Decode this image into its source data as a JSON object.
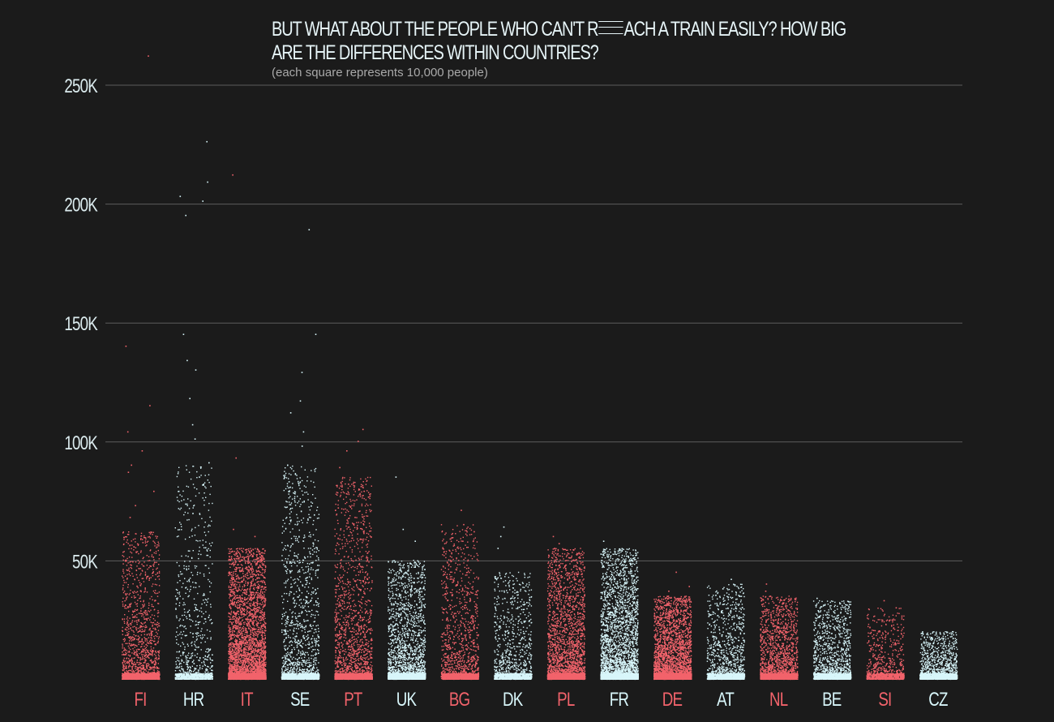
{
  "chart_data": {
    "type": "scatter",
    "title_part1": "BUT WHAT ABOUT THE PEOPLE WHO CAN'T R",
    "title_part2": "ACH A TRAIN EASILY? HOW BIG",
    "title_line2": "ARE THE DIFFERENCES WITHIN COUNTRIES?",
    "subtitle": "(each square represents 10,000 people)",
    "xlabel": "",
    "ylabel": "",
    "ylim": [
      0,
      250000
    ],
    "y_ticks": [
      50000,
      100000,
      150000,
      200000,
      250000
    ],
    "y_tick_labels": [
      "50K",
      "100K",
      "150K",
      "200K",
      "250K"
    ],
    "grid": true,
    "colors": {
      "red": "#f2636b",
      "light": "#d8f6fa",
      "grid": "#5c5c5c",
      "background": "#1b1b1b"
    },
    "categories": [
      "FI",
      "HR",
      "IT",
      "SE",
      "PT",
      "UK",
      "BG",
      "DK",
      "PL",
      "FR",
      "DE",
      "AT",
      "NL",
      "BE",
      "SI",
      "CZ"
    ],
    "category_colors": [
      "red",
      "light",
      "red",
      "light",
      "red",
      "light",
      "red",
      "light",
      "red",
      "light",
      "red",
      "light",
      "red",
      "light",
      "red",
      "light"
    ],
    "density": [
      1400,
      700,
      3600,
      1200,
      1600,
      1800,
      1100,
      800,
      2300,
      2800,
      2700,
      1000,
      1500,
      1100,
      600,
      1000
    ],
    "typical_max": [
      62000,
      90000,
      55000,
      90000,
      85000,
      50000,
      65000,
      45000,
      55000,
      55000,
      35000,
      40000,
      35000,
      33000,
      30000,
      20000
    ],
    "outliers": [
      [
        262000,
        140000,
        115000,
        104000,
        96000,
        90000,
        87000,
        79000,
        73000,
        68000
      ],
      [
        226000,
        209000,
        203000,
        201000,
        195000,
        145000,
        134000,
        130000,
        118000,
        107000,
        101000,
        91000,
        85000,
        82000,
        79000
      ],
      [
        212000,
        93000,
        63000,
        60000
      ],
      [
        189000,
        145000,
        129000,
        117000,
        112000,
        104000,
        98000,
        90000,
        83000,
        76000
      ],
      [
        105000,
        100000,
        96000,
        89000,
        82000,
        77000,
        72000
      ],
      [
        85000,
        63000,
        58000
      ],
      [
        71000,
        65000,
        62000,
        58000
      ],
      [
        64000,
        60000,
        55000
      ],
      [
        60000,
        57000,
        55000
      ],
      [
        58000,
        54000,
        52000
      ],
      [
        45000,
        39000,
        37000
      ],
      [
        42000,
        38000
      ],
      [
        40000,
        37000
      ],
      [
        34000,
        31000
      ],
      [
        33000,
        30000
      ],
      [
        20000,
        17000
      ]
    ]
  }
}
